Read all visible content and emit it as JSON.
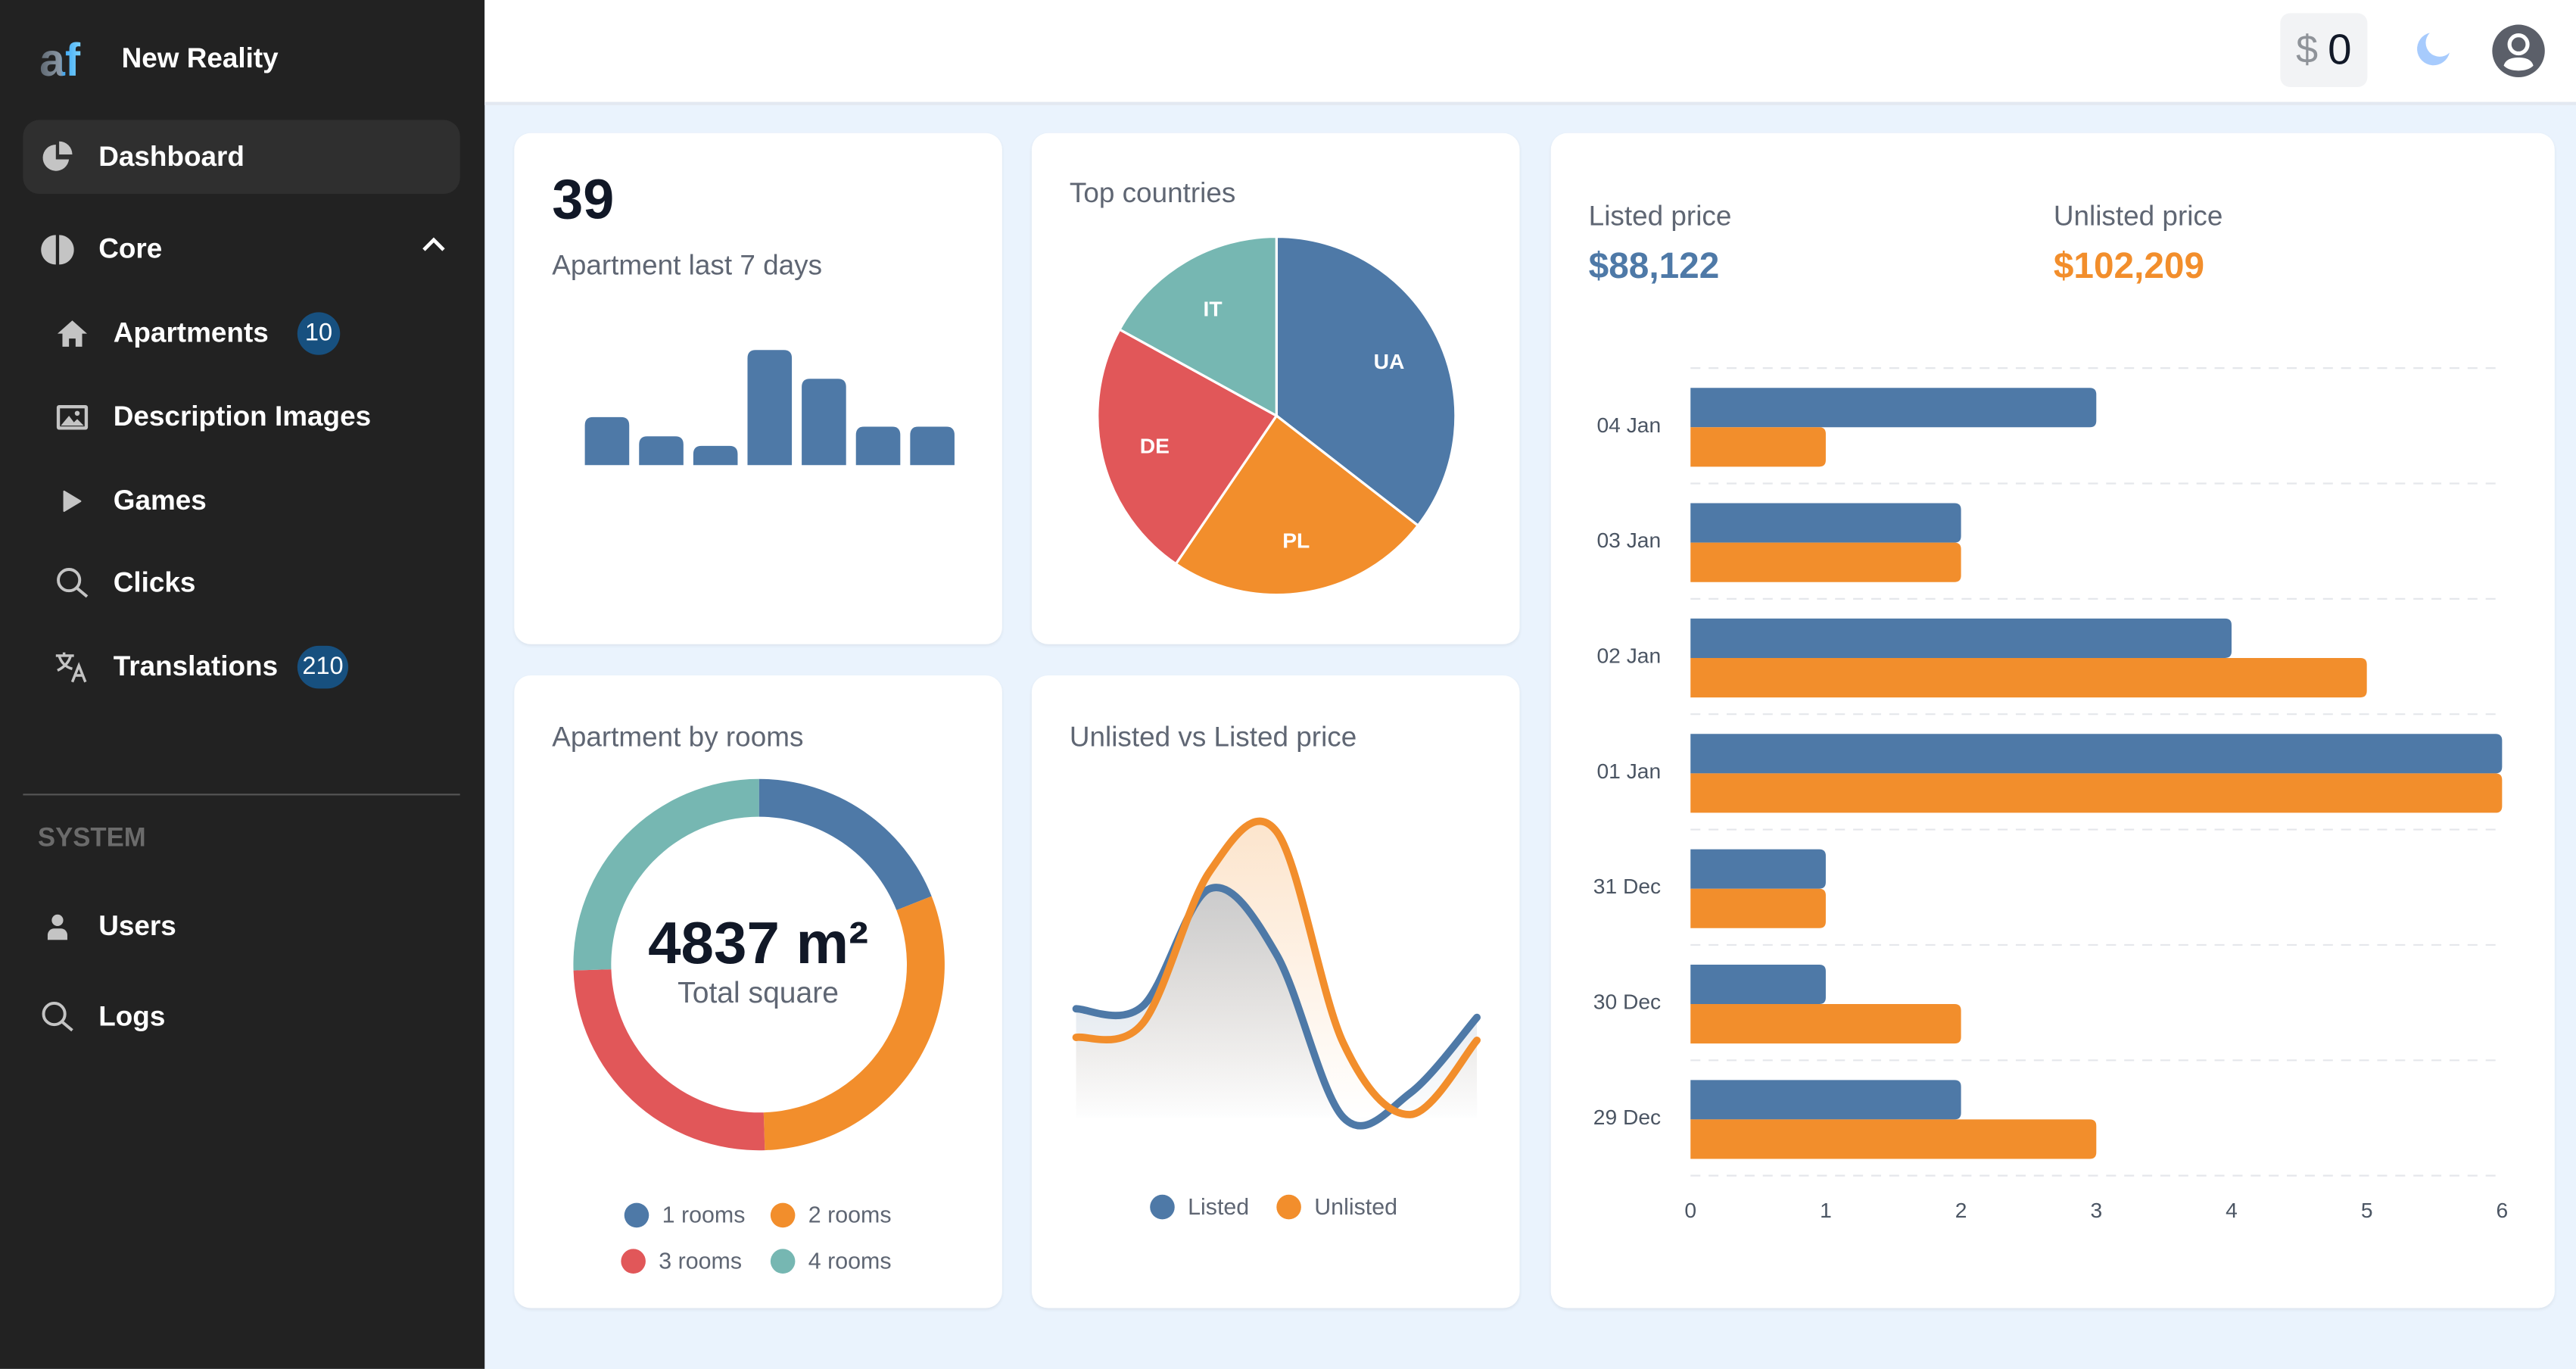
{
  "app": {
    "title": "New Reality"
  },
  "sidebar": {
    "items": [
      {
        "label": "Dashboard",
        "icon": "pie-chart-icon",
        "active": true
      },
      {
        "label": "Core",
        "icon": "brain-icon",
        "expanded": true
      }
    ],
    "core_items": [
      {
        "label": "Apartments",
        "icon": "home-icon",
        "badge": "10"
      },
      {
        "label": "Description Images",
        "icon": "image-icon"
      },
      {
        "label": "Games",
        "icon": "play-icon"
      },
      {
        "label": "Clicks",
        "icon": "search-icon"
      },
      {
        "label": "Translations",
        "icon": "translate-icon",
        "badge": "210"
      }
    ],
    "system_section": "SYSTEM",
    "system_items": [
      {
        "label": "Users",
        "icon": "user-icon"
      },
      {
        "label": "Logs",
        "icon": "search-icon"
      }
    ]
  },
  "header": {
    "balance_currency": "$",
    "balance_value": "0",
    "theme_icon": "moon-icon",
    "avatar_icon": "user-circle-icon"
  },
  "colors": {
    "blue": "#4e79a7",
    "orange": "#f28e2c",
    "red": "#e15759",
    "teal": "#76b7b2",
    "sidebar": "#222222",
    "badge": "#17507f"
  },
  "cards": {
    "apartments": {
      "value": "39",
      "label": "Apartment last 7 days"
    },
    "countries": {
      "title": "Top countries"
    },
    "rooms": {
      "title": "Apartment by rooms",
      "total": "4837 m²",
      "total_label": "Total square"
    },
    "price_trend": {
      "title": "Unlisted vs Listed price"
    },
    "prices": {
      "listed_label": "Listed price",
      "listed_value": "$88,122",
      "unlisted_label": "Unlisted price",
      "unlisted_value": "$102,209"
    }
  },
  "chart_data": [
    {
      "type": "bar",
      "orientation": "vertical",
      "values": [
        5,
        3,
        2,
        12,
        9,
        4,
        4
      ],
      "color": "#4e79a7"
    },
    {
      "type": "pie",
      "categories": [
        "UA",
        "PL",
        "DE",
        "IT"
      ],
      "values": [
        35.5,
        24,
        23.5,
        17
      ],
      "colors": [
        "#4e79a7",
        "#f28e2c",
        "#e15759",
        "#76b7b2"
      ]
    },
    {
      "type": "pie",
      "donut": true,
      "categories": [
        "1 rooms",
        "2 rooms",
        "3 rooms",
        "4 rooms"
      ],
      "values": [
        19,
        30.5,
        25,
        25.5
      ],
      "colors": [
        "#4e79a7",
        "#f28e2c",
        "#e15759",
        "#76b7b2"
      ],
      "legend": "bottom"
    },
    {
      "type": "area",
      "note_scale": "relative",
      "series": [
        {
          "name": "Listed",
          "color": "#4e79a7",
          "values": [
            0.38,
            0.39,
            0.8,
            0.57,
            0.0,
            0.085,
            0.35
          ]
        },
        {
          "name": "Unlisted",
          "color": "#f28e2c",
          "values": [
            0.28,
            0.33,
            0.86,
            1.0,
            0.26,
            0.01,
            0.27
          ]
        }
      ],
      "legend": "bottom"
    },
    {
      "type": "bar",
      "orientation": "horizontal",
      "categories": [
        "04 Jan",
        "03 Jan",
        "02 Jan",
        "01 Jan",
        "31 Dec",
        "30 Dec",
        "29 Dec"
      ],
      "series": [
        {
          "name": "Listed",
          "color": "#4e79a7",
          "values": [
            3,
            2,
            4,
            6,
            1,
            1,
            2
          ]
        },
        {
          "name": "Unlisted",
          "color": "#f28e2c",
          "values": [
            1,
            2,
            5,
            6,
            1,
            2,
            3
          ]
        }
      ],
      "xlim": [
        0,
        6
      ],
      "xticks": [
        "0",
        "1",
        "2",
        "3",
        "4",
        "5",
        "6"
      ],
      "grid": true
    }
  ]
}
